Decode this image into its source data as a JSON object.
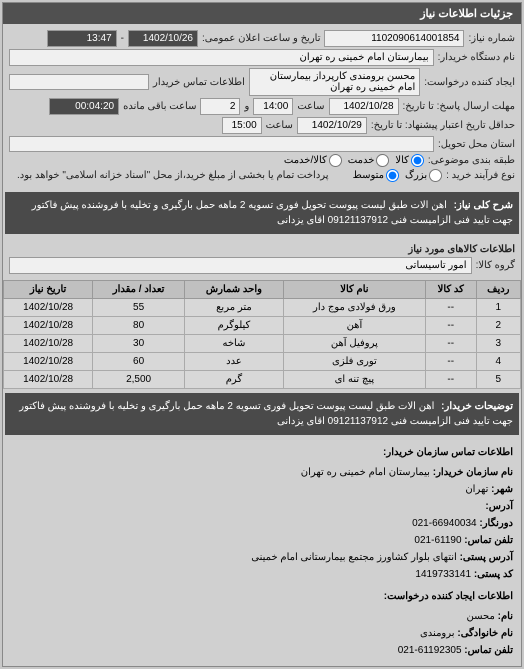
{
  "header": {
    "title": "جزئیات اطلاعات نیاز"
  },
  "top": {
    "need_no_label": "شماره نیاز:",
    "need_no": "1102090614001854",
    "public_dt_label": "تاریخ و ساعت اعلان عمومی:",
    "public_date": "1402/10/26",
    "public_time": "13:47",
    "buyer_device_label": "نام دستگاه خریدار:",
    "buyer_device": "بیمارستان امام خمینی ره تهران",
    "requester_label": "ایجاد کننده درخواست:",
    "requester": "محسن برومندی کارپرداز بیمارستان امام خمینی ره تهران",
    "buyer_contact_label": "اطلاعات تماس خریدار",
    "buyer_contact": "",
    "deadline_to_label": "مهلت ارسال پاسخ: تا تاریخ:",
    "deadline_date": "1402/10/28",
    "deadline_hour_label": "ساعت",
    "deadline_hour": "14:00",
    "deadline_min_label": "و",
    "deadline_min": "2",
    "deadline_rem_label": "ساعت باقی مانده",
    "deadline_rem": "00:04:20",
    "delivery_from_label": "حداقل تاریخ اعتبار پیشنهاد: تا تاریخ:",
    "delivery_date": "1402/10/29",
    "delivery_hour": "15:00",
    "delivery_place_label": "استان محل تحویل:",
    "delivery_place": "",
    "group_label": "طبقه بندی موضوعی:",
    "group_v1": "کالا",
    "group_v2": "خدمت",
    "group_v3": "کالا/خدمت",
    "buy_type_label": "نوع فرآیند خرید :",
    "buy_v1": "بزرگ",
    "buy_v2": "متوسط",
    "buy_note": "پرداخت تمام یا بخشی از مبلغ خرید،از محل \"اسناد خزانه اسلامی\" خواهد بود."
  },
  "desc": {
    "label": "شرح کلی نیاز:",
    "text": "اهن الات طبق لیست پیوست تحویل فوری تسویه 2 ماهه حمل بارگیری و تخلیه با فروشنده پیش فاکتور جهت تایید فنی الزامیست فنی 09121137912 اقای یزدانی"
  },
  "goods_info": {
    "label": "اطلاعات کالاهای مورد نیاز",
    "group_label": "گروه کالا:",
    "group": "امور تاسیساتی"
  },
  "table": {
    "headers": [
      "ردیف",
      "کد کالا",
      "نام کالا",
      "واحد شمارش",
      "تعداد / مقدار",
      "تاریخ نیاز"
    ],
    "rows": [
      [
        "1",
        "--",
        "ورق فولادی موج دار",
        "متر مربع",
        "55",
        "1402/10/28"
      ],
      [
        "2",
        "--",
        "آهن",
        "کیلوگرم",
        "80",
        "1402/10/28"
      ],
      [
        "3",
        "--",
        "پروفیل آهن",
        "شاخه",
        "30",
        "1402/10/28"
      ],
      [
        "4",
        "--",
        "توری فلزی",
        "عدد",
        "60",
        "1402/10/28"
      ],
      [
        "5",
        "--",
        "پیچ تنه ای",
        "گرم",
        "2,500",
        "1402/10/28"
      ]
    ]
  },
  "notes": {
    "label": "توضیحات خریدار:",
    "text": "اهن الات طبق لیست پیوست تحویل فوری تسویه 2 ماهه حمل بارگیری و تخلیه با فروشنده پیش فاکتور جهت تایید فنی الزامیست فنی 09121137912 اقای یزدانی"
  },
  "contact": {
    "title": "اطلاعات تماس سازمان خریدار:",
    "org_label": "نام سازمان خریدار:",
    "org": "بیمارستان امام خمینی ره تهران",
    "city_label": "شهر:",
    "city": "تهران",
    "addr_label": "آدرس:",
    "addr": "",
    "phone_label": "دورنگار:",
    "phone": "66940034-021",
    "tel_label": "تلفن تماس:",
    "tel": "61190-021",
    "post_addr_label": "آدرس پستی:",
    "post_addr": "انتهای بلوار کشاورز مجتمع بیمارستانی امام خمینی",
    "post_code_label": "کد پستی:",
    "post_code": "1419733141",
    "req_title": "اطلاعات ایجاد کننده درخواست:",
    "req_name_label": "نام:",
    "req_name": "محسن",
    "req_family_label": "نام خانوادگی:",
    "req_family": "برومندی",
    "req_tel_label": "تلفن تماس:",
    "req_tel": "61192305-021"
  }
}
